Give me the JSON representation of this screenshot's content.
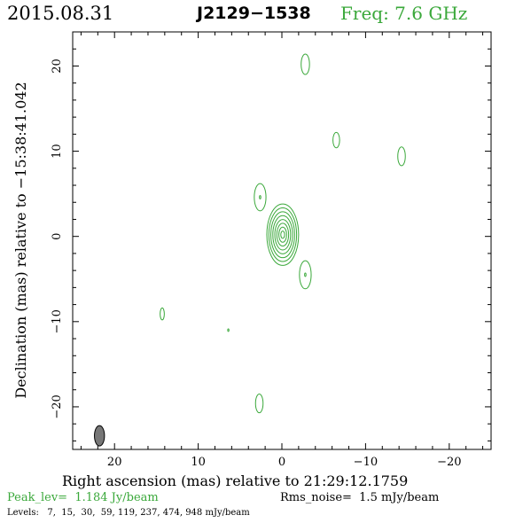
{
  "header": {
    "date": "2015.08.31",
    "source": "J2129−1538",
    "frequency": "Freq: 7.6 GHz"
  },
  "footer": {
    "peak": "Peak_lev=  1.184 Jy/beam",
    "rms": "Rms_noise=  1.5 mJy/beam",
    "levels": "Levels:   7,  15,  30,  59, 119, 237, 474, 948 mJy/beam"
  },
  "colors": {
    "contour": "#3aa83a",
    "axes": "#000000",
    "beam_fill": "#777777"
  },
  "chart_data": {
    "type": "contour",
    "title": "",
    "xlabel": "Right ascension (mas) relative to 21:29:12.1759",
    "ylabel": "Declination (mas) relative to −15:38:41.042",
    "xlim": [
      25,
      -25
    ],
    "ylim": [
      -25,
      24
    ],
    "x_reversed": true,
    "xticks": [
      20,
      10,
      0,
      -10,
      -20
    ],
    "yticks": [
      20,
      10,
      0,
      -10,
      -20
    ],
    "xtick_labels": [
      "20",
      "10",
      "0",
      "−10",
      "−20"
    ],
    "ytick_labels": [
      "20",
      "10",
      "0",
      "−10",
      "−20"
    ],
    "contour_levels_mJy": [
      7,
      15,
      30,
      59,
      119,
      237,
      474,
      948
    ],
    "components": [
      {
        "x": -0.1,
        "y": 0.2,
        "major_mas": 7.2,
        "minor_mas": 3.8,
        "levels_shown": 8
      },
      {
        "x": 2.6,
        "y": 4.6,
        "major_mas": 3.2,
        "minor_mas": 1.4,
        "levels_shown": 2
      },
      {
        "x": -2.8,
        "y": -4.5,
        "major_mas": 3.3,
        "minor_mas": 1.4,
        "levels_shown": 2
      },
      {
        "x": -2.8,
        "y": 20.2,
        "major_mas": 2.4,
        "minor_mas": 1.0,
        "levels_shown": 1
      },
      {
        "x": -6.5,
        "y": 11.3,
        "major_mas": 1.8,
        "minor_mas": 0.8,
        "levels_shown": 1
      },
      {
        "x": -14.3,
        "y": 9.4,
        "major_mas": 2.2,
        "minor_mas": 0.9,
        "levels_shown": 1
      },
      {
        "x": 14.3,
        "y": -9.1,
        "major_mas": 1.4,
        "minor_mas": 0.5,
        "levels_shown": 1
      },
      {
        "x": 2.7,
        "y": -19.6,
        "major_mas": 2.2,
        "minor_mas": 0.9,
        "levels_shown": 1
      },
      {
        "x": 6.4,
        "y": -11.0,
        "major_mas": 0.3,
        "minor_mas": 0.15,
        "levels_shown": 1
      }
    ],
    "beam": {
      "x": 21.8,
      "y": -23.4,
      "major_mas": 2.4,
      "minor_mas": 1.2
    }
  }
}
